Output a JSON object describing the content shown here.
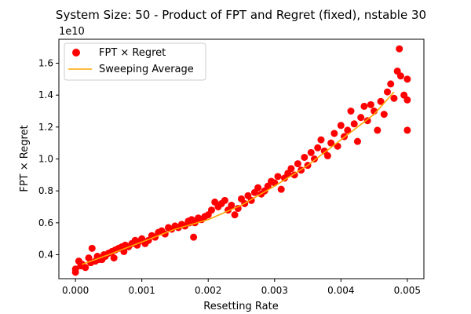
{
  "chart_data": {
    "type": "scatter",
    "title": "System Size: 50 - Product of FPT and Regret (fixed), nstable 30",
    "xlabel": "Resetting Rate",
    "ylabel": "FPT × Regret",
    "y_offset_label": "1e10",
    "xlim": [
      -0.00025,
      0.00525
    ],
    "ylim": [
      0.25,
      1.75
    ],
    "x_ticks": [
      0.0,
      0.001,
      0.002,
      0.003,
      0.004,
      0.005
    ],
    "x_tick_labels": [
      "0.000",
      "0.001",
      "0.002",
      "0.003",
      "0.004",
      "0.005"
    ],
    "y_ticks": [
      0.4,
      0.6,
      0.8,
      1.0,
      1.2,
      1.4,
      1.6
    ],
    "y_tick_labels": [
      "0.4",
      "0.6",
      "0.8",
      "1.0",
      "1.2",
      "1.4",
      "1.6"
    ],
    "grid": false,
    "legend_position": "top-left",
    "legend": [
      {
        "label": "FPT × Regret",
        "marker": "circle",
        "color": "#ff0000"
      },
      {
        "label": "Sweeping Average",
        "marker": "line",
        "color": "#ffa500"
      }
    ],
    "series": [
      {
        "name": "FPT × Regret",
        "kind": "scatter",
        "color": "#ff0000",
        "points": [
          [
            0.0,
            0.31
          ],
          [
            0.0,
            0.29
          ],
          [
            5e-05,
            0.36
          ],
          [
            8e-05,
            0.33
          ],
          [
            0.0001,
            0.34
          ],
          [
            0.00015,
            0.32
          ],
          [
            0.0002,
            0.38
          ],
          [
            0.00023,
            0.35
          ],
          [
            0.00025,
            0.44
          ],
          [
            0.0003,
            0.36
          ],
          [
            0.00033,
            0.39
          ],
          [
            0.00035,
            0.37
          ],
          [
            0.0004,
            0.37
          ],
          [
            0.00043,
            0.4
          ],
          [
            0.00045,
            0.39
          ],
          [
            0.0005,
            0.41
          ],
          [
            0.00055,
            0.42
          ],
          [
            0.00058,
            0.38
          ],
          [
            0.0006,
            0.43
          ],
          [
            0.00065,
            0.44
          ],
          [
            0.0007,
            0.45
          ],
          [
            0.00073,
            0.42
          ],
          [
            0.00075,
            0.46
          ],
          [
            0.0008,
            0.45
          ],
          [
            0.00085,
            0.47
          ],
          [
            0.0009,
            0.49
          ],
          [
            0.00093,
            0.46
          ],
          [
            0.00095,
            0.48
          ],
          [
            0.001,
            0.5
          ],
          [
            0.00105,
            0.47
          ],
          [
            0.0011,
            0.49
          ],
          [
            0.00115,
            0.52
          ],
          [
            0.0012,
            0.51
          ],
          [
            0.00125,
            0.54
          ],
          [
            0.0013,
            0.55
          ],
          [
            0.00135,
            0.53
          ],
          [
            0.0014,
            0.57
          ],
          [
            0.00145,
            0.56
          ],
          [
            0.0015,
            0.58
          ],
          [
            0.00155,
            0.57
          ],
          [
            0.0016,
            0.59
          ],
          [
            0.00165,
            0.58
          ],
          [
            0.0017,
            0.61
          ],
          [
            0.00172,
            0.6
          ],
          [
            0.00175,
            0.62
          ],
          [
            0.00178,
            0.51
          ],
          [
            0.0018,
            0.6
          ],
          [
            0.00185,
            0.63
          ],
          [
            0.0019,
            0.62
          ],
          [
            0.00195,
            0.64
          ],
          [
            0.002,
            0.65
          ],
          [
            0.00205,
            0.68
          ],
          [
            0.0021,
            0.73
          ],
          [
            0.00215,
            0.7
          ],
          [
            0.0022,
            0.72
          ],
          [
            0.00225,
            0.74
          ],
          [
            0.0023,
            0.68
          ],
          [
            0.00235,
            0.71
          ],
          [
            0.0024,
            0.65
          ],
          [
            0.00245,
            0.69
          ],
          [
            0.0025,
            0.75
          ],
          [
            0.00255,
            0.72
          ],
          [
            0.0026,
            0.77
          ],
          [
            0.00265,
            0.74
          ],
          [
            0.0027,
            0.79
          ],
          [
            0.00275,
            0.82
          ],
          [
            0.0028,
            0.78
          ],
          [
            0.00285,
            0.8
          ],
          [
            0.0029,
            0.83
          ],
          [
            0.00295,
            0.86
          ],
          [
            0.003,
            0.85
          ],
          [
            0.00305,
            0.89
          ],
          [
            0.0031,
            0.81
          ],
          [
            0.00315,
            0.88
          ],
          [
            0.0032,
            0.91
          ],
          [
            0.00325,
            0.94
          ],
          [
            0.0033,
            0.9
          ],
          [
            0.00335,
            0.97
          ],
          [
            0.0034,
            0.93
          ],
          [
            0.00345,
            1.01
          ],
          [
            0.0035,
            0.96
          ],
          [
            0.00355,
            1.04
          ],
          [
            0.0036,
            1.0
          ],
          [
            0.00365,
            1.07
          ],
          [
            0.0037,
            1.12
          ],
          [
            0.00375,
            1.05
          ],
          [
            0.0038,
            1.02
          ],
          [
            0.00385,
            1.1
          ],
          [
            0.0039,
            1.16
          ],
          [
            0.00395,
            1.08
          ],
          [
            0.004,
            1.21
          ],
          [
            0.00405,
            1.14
          ],
          [
            0.0041,
            1.18
          ],
          [
            0.00415,
            1.3
          ],
          [
            0.0042,
            1.22
          ],
          [
            0.00425,
            1.11
          ],
          [
            0.0043,
            1.26
          ],
          [
            0.00435,
            1.33
          ],
          [
            0.0044,
            1.24
          ],
          [
            0.00445,
            1.34
          ],
          [
            0.0045,
            1.3
          ],
          [
            0.00455,
            1.18
          ],
          [
            0.0046,
            1.36
          ],
          [
            0.00465,
            1.28
          ],
          [
            0.0047,
            1.42
          ],
          [
            0.00475,
            1.47
          ],
          [
            0.0048,
            1.38
          ],
          [
            0.00485,
            1.55
          ],
          [
            0.00488,
            1.69
          ],
          [
            0.0049,
            1.52
          ],
          [
            0.00495,
            1.4
          ],
          [
            0.005,
            1.37
          ],
          [
            0.005,
            1.5
          ],
          [
            0.005,
            1.18
          ]
        ]
      },
      {
        "name": "Sweeping Average",
        "kind": "line",
        "color": "#ffa500",
        "points": [
          [
            0.0001,
            0.34
          ],
          [
            0.0005,
            0.4
          ],
          [
            0.001,
            0.48
          ],
          [
            0.0015,
            0.56
          ],
          [
            0.002,
            0.62
          ],
          [
            0.0025,
            0.71
          ],
          [
            0.003,
            0.83
          ],
          [
            0.0035,
            0.96
          ],
          [
            0.004,
            1.12
          ],
          [
            0.0045,
            1.28
          ],
          [
            0.0048,
            1.42
          ]
        ]
      }
    ]
  }
}
